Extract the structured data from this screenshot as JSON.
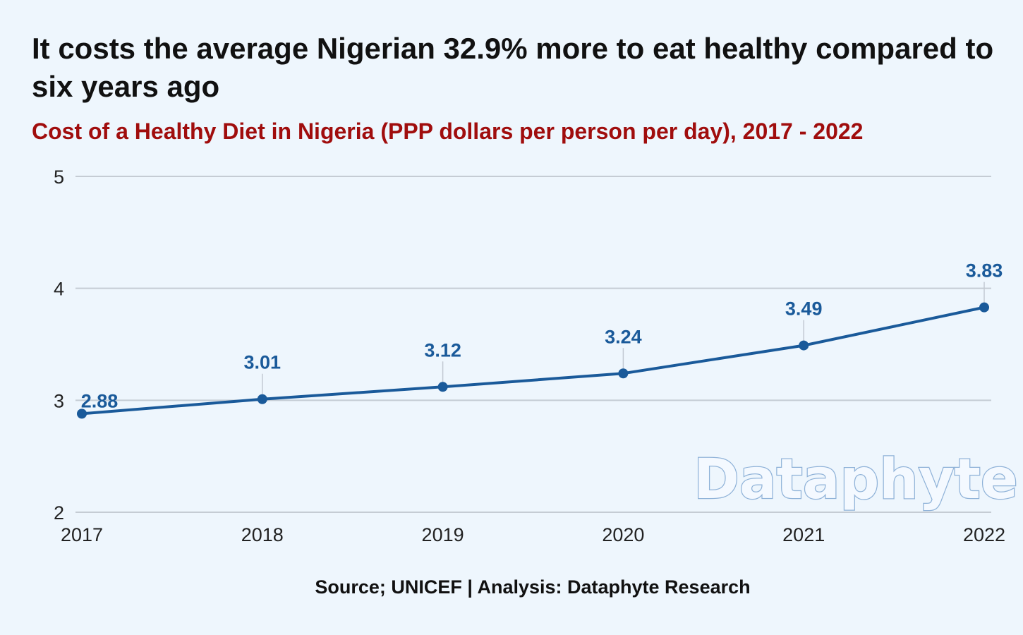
{
  "header": {
    "title": "It costs the average Nigerian 32.9% more to eat healthy compared to six years ago",
    "subtitle": "Cost of a Healthy Diet in Nigeria (PPP dollars per person per day), 2017 - 2022"
  },
  "footer": {
    "source": "Source; UNICEF | Analysis: Dataphyte Research"
  },
  "watermark": {
    "text": "Dataphyte"
  },
  "colors": {
    "line": "#1a5a9a",
    "label": "#1a5a9a",
    "grid": "#c5ccd4",
    "subtitle": "#a00d0d"
  },
  "chart_data": {
    "type": "line",
    "title": "Cost of a Healthy Diet in Nigeria (PPP dollars per person per day), 2017 - 2022",
    "xlabel": "",
    "ylabel": "",
    "categories": [
      "2017",
      "2018",
      "2019",
      "2020",
      "2021",
      "2022"
    ],
    "series": [
      {
        "values": [
          2.88,
          3.01,
          3.12,
          3.24,
          3.49,
          3.83
        ]
      }
    ],
    "data_labels": [
      "2.88",
      "3.01",
      "3.12",
      "3.24",
      "3.49",
      "3.83"
    ],
    "ylim": [
      2,
      5
    ],
    "yticks": [
      "2",
      "3",
      "4",
      "5"
    ],
    "grid": true,
    "legend": "none"
  }
}
